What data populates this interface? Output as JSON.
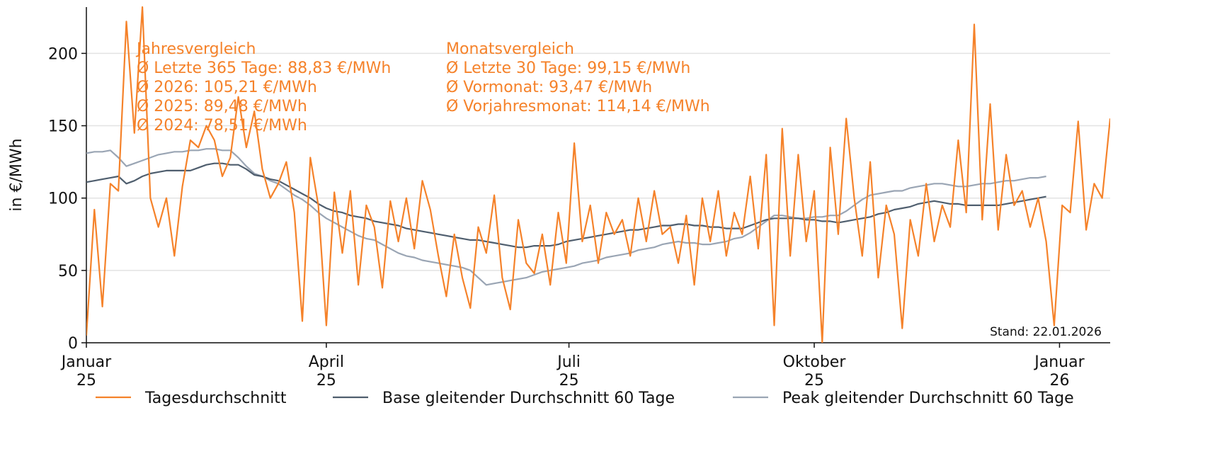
{
  "chart_data": {
    "type": "line",
    "ylabel": "in €/MWh",
    "xlim": [
      0,
      384
    ],
    "ylim": [
      0,
      232
    ],
    "yticks": [
      0,
      50,
      100,
      150,
      200
    ],
    "xticks": [
      {
        "value": 0,
        "label": "Januar\n25"
      },
      {
        "value": 90,
        "label": "April\n25"
      },
      {
        "value": 181,
        "label": "Juli\n25"
      },
      {
        "value": 273,
        "label": "Oktober\n25"
      },
      {
        "value": 365,
        "label": "Januar\n26"
      }
    ],
    "grid": true,
    "legend": "bottom",
    "annotations": [
      {
        "lines": [
          "Jahresvergleich",
          "Ø Letzte 365 Tage: 88,83 €/MWh",
          "Ø 2026: 105,21 €/MWh",
          "Ø 2025: 89,48 €/MWh",
          "Ø 2024: 78,51 €/MWh"
        ],
        "color": "#f5822a"
      },
      {
        "lines": [
          "Monatsvergleich",
          "Ø Letzte 30 Tage: 99,15 €/MWh",
          "Ø Vormonat: 93,47 €/MWh",
          "Ø Vorjahresmonat: 114,14 €/MWh"
        ],
        "color": "#f5822a"
      }
    ],
    "note": "Stand: 22.01.2026",
    "x": [
      0,
      3,
      6,
      9,
      12,
      15,
      18,
      21,
      24,
      27,
      30,
      33,
      36,
      39,
      42,
      45,
      48,
      51,
      54,
      57,
      60,
      63,
      66,
      69,
      72,
      75,
      78,
      81,
      84,
      87,
      90,
      93,
      96,
      99,
      102,
      105,
      108,
      111,
      114,
      117,
      120,
      123,
      126,
      129,
      132,
      135,
      138,
      141,
      144,
      147,
      150,
      153,
      156,
      159,
      162,
      165,
      168,
      171,
      174,
      177,
      180,
      183,
      186,
      189,
      192,
      195,
      198,
      201,
      204,
      207,
      210,
      213,
      216,
      219,
      222,
      225,
      228,
      231,
      234,
      237,
      240,
      243,
      246,
      249,
      252,
      255,
      258,
      261,
      264,
      267,
      270,
      273,
      276,
      279,
      282,
      285,
      288,
      291,
      294,
      297,
      300,
      303,
      306,
      309,
      312,
      315,
      318,
      321,
      324,
      327,
      330,
      333,
      336,
      339,
      342,
      345,
      348,
      351,
      354,
      357,
      360,
      363,
      366,
      369,
      372,
      375,
      378,
      381,
      384
    ],
    "series": [
      {
        "name": "Tagesdurchschnitt",
        "color": "#f5822a",
        "width": 2.2,
        "values": [
          5,
          92,
          25,
          110,
          105,
          222,
          145,
          232,
          100,
          80,
          100,
          60,
          108,
          140,
          135,
          150,
          140,
          115,
          128,
          170,
          135,
          160,
          120,
          100,
          110,
          125,
          90,
          15,
          128,
          95,
          12,
          104,
          62,
          105,
          40,
          95,
          80,
          38,
          98,
          70,
          100,
          65,
          112,
          92,
          60,
          32,
          75,
          45,
          24,
          80,
          62,
          102,
          45,
          23,
          85,
          55,
          48,
          75,
          40,
          90,
          55,
          138,
          70,
          95,
          55,
          90,
          75,
          85,
          60,
          100,
          70,
          105,
          75,
          80,
          55,
          88,
          40,
          100,
          70,
          105,
          60,
          90,
          75,
          115,
          65,
          130,
          12,
          148,
          60,
          130,
          70,
          105,
          0,
          135,
          75,
          155,
          100,
          60,
          125,
          45,
          95,
          75,
          10,
          85,
          60,
          110,
          70,
          95,
          80,
          140,
          90,
          220,
          85,
          165,
          78,
          130,
          95,
          105,
          80,
          100,
          70,
          12,
          95,
          90,
          153,
          78,
          110,
          100,
          155
        ]
      },
      {
        "name": "Base gleitender Durchschnitt 60 Tage",
        "color": "#4f5e6e",
        "width": 2.2,
        "values": [
          111,
          112,
          113,
          114,
          115,
          110,
          112,
          115,
          117,
          118,
          119,
          119,
          119,
          119,
          121,
          123,
          124,
          124,
          123,
          123,
          120,
          116,
          115,
          113,
          112,
          109,
          106,
          103,
          100,
          96,
          93,
          91,
          90,
          88,
          87,
          86,
          84,
          83,
          82,
          81,
          79,
          78,
          77,
          76,
          75,
          74,
          73,
          72,
          71,
          71,
          70,
          69,
          68,
          67,
          66,
          66,
          67,
          67,
          67,
          68,
          70,
          71,
          72,
          73,
          74,
          75,
          76,
          77,
          78,
          78,
          79,
          80,
          81,
          81,
          82,
          82,
          81,
          81,
          80,
          80,
          79,
          79,
          79,
          81,
          83,
          85,
          86,
          86,
          86,
          86,
          85,
          85,
          84,
          84,
          83,
          84,
          85,
          86,
          87,
          89,
          90,
          92,
          93,
          94,
          96,
          97,
          98,
          97,
          96,
          96,
          95,
          95,
          95,
          95,
          95,
          96,
          97,
          98,
          99,
          100,
          101,
          null,
          null,
          null,
          null,
          null,
          null,
          null,
          null
        ]
      },
      {
        "name": "Peak gleitender Durchschnitt 60 Tage",
        "color": "#9aa5b4",
        "width": 2.2,
        "values": [
          131,
          132,
          132,
          133,
          128,
          122,
          124,
          126,
          128,
          130,
          131,
          132,
          132,
          133,
          133,
          134,
          134,
          133,
          133,
          128,
          122,
          117,
          115,
          112,
          110,
          106,
          102,
          99,
          95,
          90,
          86,
          83,
          80,
          77,
          74,
          72,
          71,
          68,
          65,
          62,
          60,
          59,
          57,
          56,
          55,
          54,
          53,
          52,
          50,
          45,
          40,
          41,
          42,
          43,
          44,
          45,
          47,
          49,
          50,
          51,
          52,
          53,
          55,
          56,
          57,
          59,
          60,
          61,
          62,
          64,
          65,
          66,
          68,
          69,
          70,
          69,
          69,
          68,
          68,
          69,
          70,
          72,
          73,
          76,
          80,
          84,
          88,
          88,
          87,
          86,
          86,
          87,
          87,
          88,
          88,
          91,
          95,
          99,
          102,
          103,
          104,
          105,
          105,
          107,
          108,
          109,
          110,
          110,
          109,
          108,
          108,
          109,
          110,
          110,
          111,
          112,
          112,
          113,
          114,
          114,
          115,
          null,
          null,
          null,
          null,
          null,
          null,
          null,
          null
        ]
      }
    ]
  }
}
